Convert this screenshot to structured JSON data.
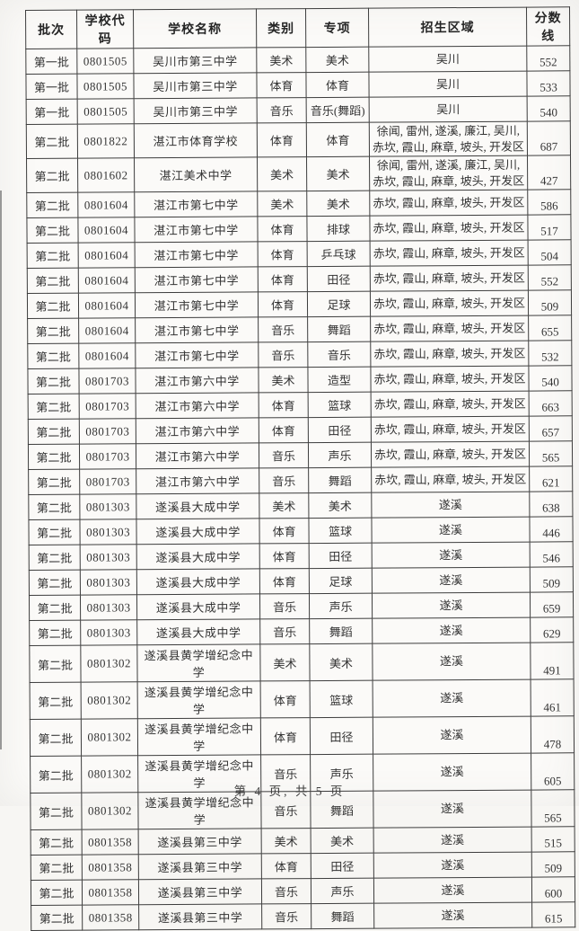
{
  "document": {
    "table": {
      "headers": [
        "批次",
        "学校代码",
        "学校名称",
        "类别",
        "专项",
        "招生区域",
        "分数线"
      ],
      "rows": [
        [
          "第一批",
          "0801505",
          "吴川市第三中学",
          "美术",
          "美术",
          "吴川",
          "552"
        ],
        [
          "第一批",
          "0801505",
          "吴川市第三中学",
          "体育",
          "体育",
          "吴川",
          "533"
        ],
        [
          "第一批",
          "0801505",
          "吴川市第三中学",
          "音乐",
          "音乐(舞蹈)",
          "吴川",
          "540"
        ],
        [
          "第二批",
          "0801822",
          "湛江市体育学校",
          "体育",
          "体育",
          "徐闻, 雷州, 遂溪, 廉江, 吴川, 赤坎, 霞山, 麻章, 坡头, 开发区",
          "687"
        ],
        [
          "第二批",
          "0801602",
          "湛江美术中学",
          "美术",
          "美术",
          "徐闻, 雷州, 遂溪, 廉江, 吴川, 赤坎, 霞山, 麻章, 坡头, 开发区",
          "427"
        ],
        [
          "第二批",
          "0801604",
          "湛江市第七中学",
          "美术",
          "美术",
          "赤坎, 霞山, 麻章, 坡头, 开发区",
          "586"
        ],
        [
          "第二批",
          "0801604",
          "湛江市第七中学",
          "体育",
          "排球",
          "赤坎, 霞山, 麻章, 坡头, 开发区",
          "517"
        ],
        [
          "第二批",
          "0801604",
          "湛江市第七中学",
          "体育",
          "乒乓球",
          "赤坎, 霞山, 麻章, 坡头, 开发区",
          "504"
        ],
        [
          "第二批",
          "0801604",
          "湛江市第七中学",
          "体育",
          "田径",
          "赤坎, 霞山, 麻章, 坡头, 开发区",
          "552"
        ],
        [
          "第二批",
          "0801604",
          "湛江市第七中学",
          "体育",
          "足球",
          "赤坎, 霞山, 麻章, 坡头, 开发区",
          "509"
        ],
        [
          "第二批",
          "0801604",
          "湛江市第七中学",
          "音乐",
          "舞蹈",
          "赤坎, 霞山, 麻章, 坡头, 开发区",
          "655"
        ],
        [
          "第二批",
          "0801604",
          "湛江市第七中学",
          "音乐",
          "音乐",
          "赤坎, 霞山, 麻章, 坡头, 开发区",
          "532"
        ],
        [
          "第二批",
          "0801703",
          "湛江市第六中学",
          "美术",
          "造型",
          "赤坎, 霞山, 麻章, 坡头, 开发区",
          "540"
        ],
        [
          "第二批",
          "0801703",
          "湛江市第六中学",
          "体育",
          "篮球",
          "赤坎, 霞山, 麻章, 坡头, 开发区",
          "663"
        ],
        [
          "第二批",
          "0801703",
          "湛江市第六中学",
          "体育",
          "田径",
          "赤坎, 霞山, 麻章, 坡头, 开发区",
          "657"
        ],
        [
          "第二批",
          "0801703",
          "湛江市第六中学",
          "音乐",
          "声乐",
          "赤坎, 霞山, 麻章, 坡头, 开发区",
          "565"
        ],
        [
          "第二批",
          "0801703",
          "湛江市第六中学",
          "音乐",
          "舞蹈",
          "赤坎, 霞山, 麻章, 坡头, 开发区",
          "621"
        ],
        [
          "第二批",
          "0801303",
          "遂溪县大成中学",
          "美术",
          "美术",
          "遂溪",
          "638"
        ],
        [
          "第二批",
          "0801303",
          "遂溪县大成中学",
          "体育",
          "篮球",
          "遂溪",
          "446"
        ],
        [
          "第二批",
          "0801303",
          "遂溪县大成中学",
          "体育",
          "田径",
          "遂溪",
          "546"
        ],
        [
          "第二批",
          "0801303",
          "遂溪县大成中学",
          "体育",
          "足球",
          "遂溪",
          "509"
        ],
        [
          "第二批",
          "0801303",
          "遂溪县大成中学",
          "音乐",
          "声乐",
          "遂溪",
          "659"
        ],
        [
          "第二批",
          "0801303",
          "遂溪县大成中学",
          "音乐",
          "舞蹈",
          "遂溪",
          "629"
        ],
        [
          "第二批",
          "0801302",
          "遂溪县黄学增纪念中学",
          "美术",
          "美术",
          "遂溪",
          "491"
        ],
        [
          "第二批",
          "0801302",
          "遂溪县黄学增纪念中学",
          "体育",
          "篮球",
          "遂溪",
          "461"
        ],
        [
          "第二批",
          "0801302",
          "遂溪县黄学增纪念中学",
          "体育",
          "田径",
          "遂溪",
          "478"
        ],
        [
          "第二批",
          "0801302",
          "遂溪县黄学增纪念中学",
          "音乐",
          "声乐",
          "遂溪",
          "605"
        ],
        [
          "第二批",
          "0801302",
          "遂溪县黄学增纪念中学",
          "音乐",
          "舞蹈",
          "遂溪",
          "565"
        ],
        [
          "第二批",
          "0801358",
          "遂溪县第三中学",
          "美术",
          "美术",
          "遂溪",
          "515"
        ],
        [
          "第二批",
          "0801358",
          "遂溪县第三中学",
          "体育",
          "田径",
          "遂溪",
          "509"
        ],
        [
          "第二批",
          "0801358",
          "遂溪县第三中学",
          "音乐",
          "声乐",
          "遂溪",
          "600"
        ],
        [
          "第二批",
          "0801358",
          "遂溪县第三中学",
          "音乐",
          "舞蹈",
          "遂溪",
          "615"
        ]
      ]
    },
    "footer": {
      "page_indicator": "第 4 页, 共 5 页"
    }
  }
}
